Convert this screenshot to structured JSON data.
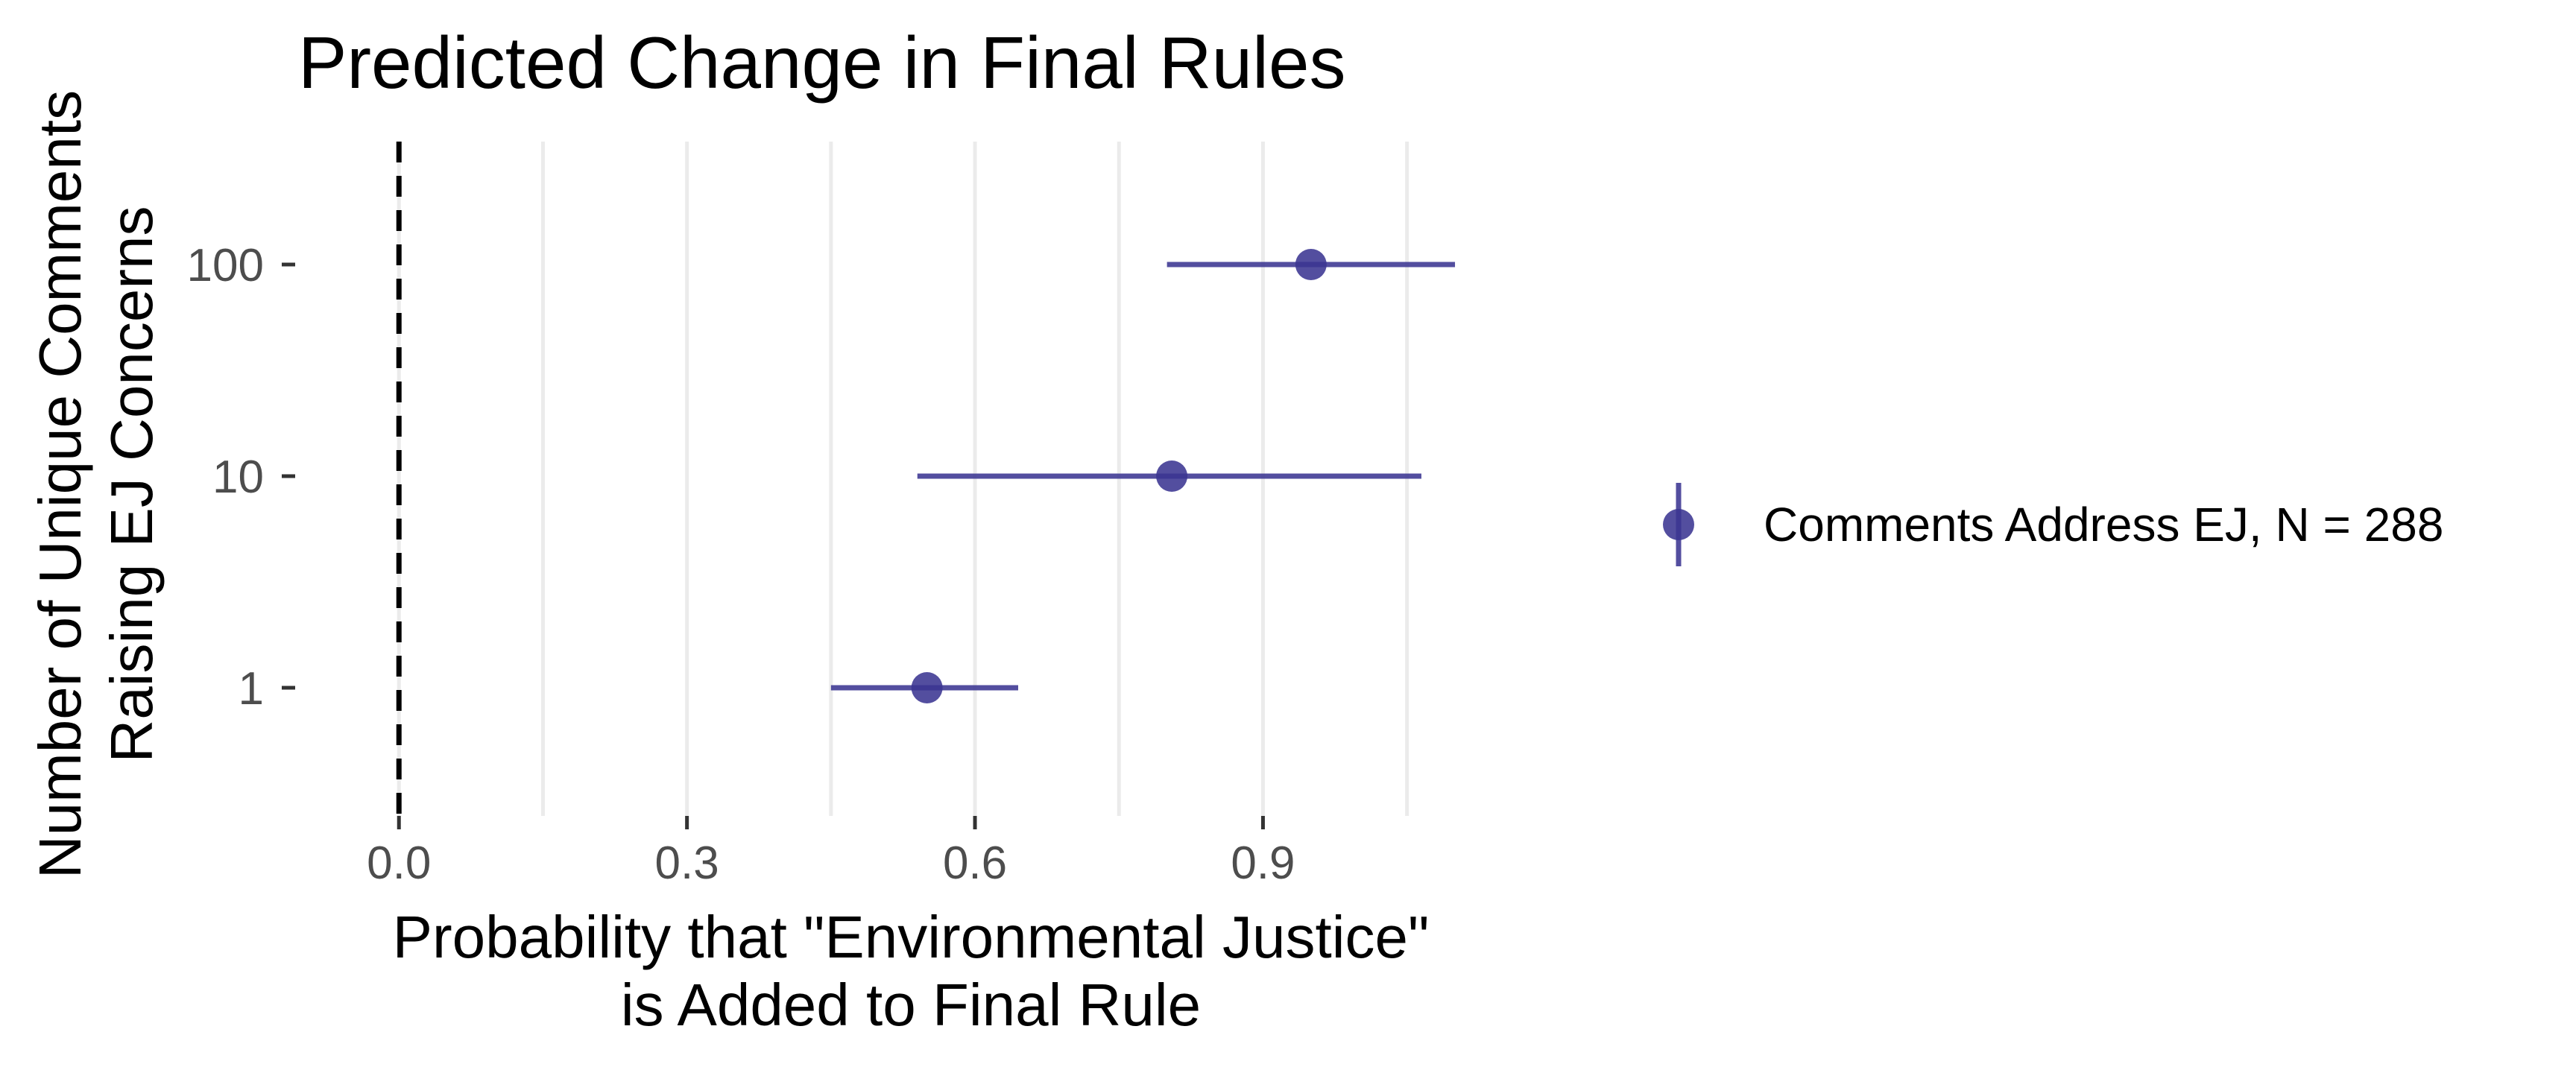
{
  "chart_data": {
    "type": "scatter",
    "title": "Predicted Change in Final Rules",
    "xlabel_lines": [
      "Probability that \"Environmental Justice\"",
      "is Added to Final Rule"
    ],
    "ylabel_lines": [
      "Number of Unique Comments",
      "Raising EJ Concerns"
    ],
    "x_ticks": [
      "0.0",
      "0.3",
      "0.6",
      "0.9"
    ],
    "x_tick_values": [
      0.0,
      0.3,
      0.6,
      0.9
    ],
    "xlim": [
      -0.105,
      1.145
    ],
    "categories": [
      "1",
      "10",
      "100"
    ],
    "reference_line_x": 0,
    "grid": "vertical",
    "legend_position": "right",
    "series": [
      {
        "name": "Comments Address EJ, N = 288",
        "color": "#3b3592",
        "points": [
          {
            "category": "1",
            "estimate": 0.55,
            "lower": 0.45,
            "upper": 0.645
          },
          {
            "category": "10",
            "estimate": 0.805,
            "lower": 0.54,
            "upper": 1.065
          },
          {
            "category": "100",
            "estimate": 0.95,
            "lower": 0.8,
            "upper": 1.1
          }
        ]
      }
    ]
  }
}
